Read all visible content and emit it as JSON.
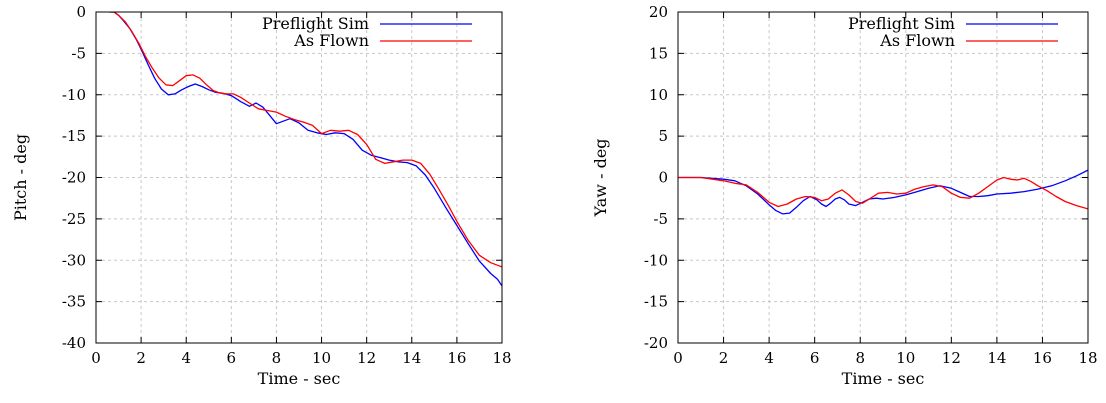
{
  "chart_data": [
    {
      "type": "line",
      "title": "",
      "xlabel": "Time - sec",
      "ylabel": "Pitch - deg",
      "xlim": [
        0,
        18
      ],
      "ylim": [
        -40,
        0
      ],
      "xticks": [
        0,
        2,
        4,
        6,
        8,
        10,
        12,
        14,
        16,
        18
      ],
      "yticks": [
        0,
        -5,
        -10,
        -15,
        -20,
        -25,
        -30,
        -35,
        -40
      ],
      "grid": true,
      "legend_position": "top-right",
      "series": [
        {
          "name": "Preflight Sim",
          "color": "#0000ff",
          "x": [
            0.6,
            0.8,
            1.0,
            1.2,
            1.5,
            1.8,
            2.0,
            2.3,
            2.6,
            2.9,
            3.2,
            3.5,
            3.8,
            4.1,
            4.4,
            4.7,
            5.0,
            5.3,
            5.6,
            6.0,
            6.4,
            6.8,
            7.1,
            7.4,
            7.7,
            8.0,
            8.3,
            8.6,
            9.0,
            9.4,
            9.8,
            10.2,
            10.6,
            11.0,
            11.4,
            11.8,
            12.2,
            12.6,
            13.0,
            13.4,
            13.8,
            14.2,
            14.6,
            15.0,
            15.5,
            16.0,
            16.5,
            17.0,
            17.5,
            17.8,
            18.0
          ],
          "values": [
            0.0,
            0.0,
            -0.4,
            -1.0,
            -2.0,
            -3.4,
            -4.5,
            -6.3,
            -8.0,
            -9.3,
            -10.0,
            -9.9,
            -9.4,
            -9.0,
            -8.7,
            -9.0,
            -9.4,
            -9.7,
            -9.8,
            -10.1,
            -10.8,
            -11.4,
            -11.0,
            -11.5,
            -12.5,
            -13.5,
            -13.2,
            -12.9,
            -13.4,
            -14.3,
            -14.6,
            -14.8,
            -14.6,
            -14.7,
            -15.4,
            -16.7,
            -17.3,
            -17.6,
            -17.9,
            -18.1,
            -18.2,
            -18.6,
            -19.7,
            -21.3,
            -23.6,
            -25.8,
            -28.0,
            -30.1,
            -31.6,
            -32.3,
            -33.1
          ]
        },
        {
          "name": "As Flown",
          "color": "#ff0000",
          "x": [
            0.6,
            0.8,
            1.0,
            1.3,
            1.6,
            1.9,
            2.2,
            2.5,
            2.8,
            3.1,
            3.4,
            3.7,
            4.0,
            4.3,
            4.6,
            4.9,
            5.2,
            5.5,
            5.8,
            6.1,
            6.4,
            6.8,
            7.2,
            7.6,
            8.0,
            8.4,
            8.8,
            9.2,
            9.6,
            10.0,
            10.4,
            10.8,
            11.2,
            11.6,
            12.0,
            12.4,
            12.8,
            13.2,
            13.6,
            14.0,
            14.4,
            14.8,
            15.2,
            15.6,
            16.0,
            16.5,
            17.0,
            17.5,
            18.0
          ],
          "values": [
            0.0,
            0.0,
            -0.4,
            -1.2,
            -2.4,
            -3.8,
            -5.4,
            -6.8,
            -8.0,
            -8.8,
            -8.9,
            -8.3,
            -7.7,
            -7.6,
            -8.0,
            -8.8,
            -9.5,
            -9.8,
            -9.9,
            -9.9,
            -10.3,
            -11.0,
            -11.7,
            -11.9,
            -12.1,
            -12.6,
            -13.0,
            -13.3,
            -13.7,
            -14.7,
            -14.3,
            -14.4,
            -14.3,
            -14.8,
            -16.0,
            -17.8,
            -18.3,
            -18.1,
            -17.9,
            -17.9,
            -18.3,
            -19.6,
            -21.4,
            -23.3,
            -25.3,
            -27.6,
            -29.4,
            -30.3,
            -30.8
          ]
        }
      ]
    },
    {
      "type": "line",
      "title": "",
      "xlabel": "Time - sec",
      "ylabel": "Yaw - deg",
      "xlim": [
        0,
        18
      ],
      "ylim": [
        -20,
        20
      ],
      "xticks": [
        0,
        2,
        4,
        6,
        8,
        10,
        12,
        14,
        16,
        18
      ],
      "yticks": [
        20,
        15,
        10,
        5,
        0,
        -5,
        -10,
        -15,
        -20
      ],
      "grid": true,
      "legend_position": "top-right",
      "series": [
        {
          "name": "Preflight Sim",
          "color": "#0000ff",
          "x": [
            0.0,
            1.0,
            2.0,
            2.5,
            3.0,
            3.5,
            4.0,
            4.3,
            4.6,
            4.9,
            5.2,
            5.5,
            5.8,
            6.1,
            6.3,
            6.5,
            6.7,
            6.9,
            7.1,
            7.3,
            7.5,
            7.8,
            8.1,
            8.4,
            8.7,
            9.0,
            9.5,
            10.0,
            10.5,
            11.0,
            11.5,
            12.0,
            12.4,
            12.8,
            13.2,
            13.6,
            14.0,
            14.6,
            15.2,
            15.8,
            16.4,
            17.0,
            17.5,
            18.0
          ],
          "values": [
            0.0,
            0.0,
            -0.2,
            -0.4,
            -1.0,
            -2.0,
            -3.3,
            -4.0,
            -4.4,
            -4.3,
            -3.6,
            -2.8,
            -2.3,
            -2.7,
            -3.2,
            -3.5,
            -3.1,
            -2.6,
            -2.4,
            -2.7,
            -3.2,
            -3.4,
            -3.0,
            -2.6,
            -2.5,
            -2.6,
            -2.4,
            -2.1,
            -1.7,
            -1.3,
            -1.0,
            -1.3,
            -1.8,
            -2.3,
            -2.3,
            -2.2,
            -2.0,
            -1.9,
            -1.7,
            -1.4,
            -1.0,
            -0.4,
            0.2,
            0.9
          ]
        },
        {
          "name": "As Flown",
          "color": "#ff0000",
          "x": [
            0.0,
            1.0,
            2.0,
            2.5,
            3.0,
            3.5,
            4.0,
            4.4,
            4.8,
            5.2,
            5.6,
            6.0,
            6.3,
            6.6,
            6.9,
            7.2,
            7.5,
            7.8,
            8.1,
            8.4,
            8.8,
            9.2,
            9.6,
            10.0,
            10.4,
            10.8,
            11.2,
            11.6,
            12.0,
            12.4,
            12.8,
            13.2,
            13.6,
            14.0,
            14.3,
            14.6,
            14.9,
            15.2,
            15.5,
            15.8,
            16.2,
            16.6,
            17.0,
            17.5,
            18.0
          ],
          "values": [
            0.0,
            0.0,
            -0.4,
            -0.7,
            -0.9,
            -1.8,
            -3.0,
            -3.5,
            -3.2,
            -2.6,
            -2.3,
            -2.4,
            -2.8,
            -2.6,
            -1.9,
            -1.5,
            -2.1,
            -2.9,
            -3.1,
            -2.6,
            -1.9,
            -1.8,
            -2.0,
            -1.9,
            -1.4,
            -1.1,
            -0.9,
            -1.1,
            -1.9,
            -2.4,
            -2.5,
            -1.9,
            -1.1,
            -0.3,
            0.0,
            -0.2,
            -0.3,
            -0.1,
            -0.5,
            -1.0,
            -1.6,
            -2.3,
            -2.9,
            -3.4,
            -3.8
          ]
        }
      ]
    }
  ]
}
